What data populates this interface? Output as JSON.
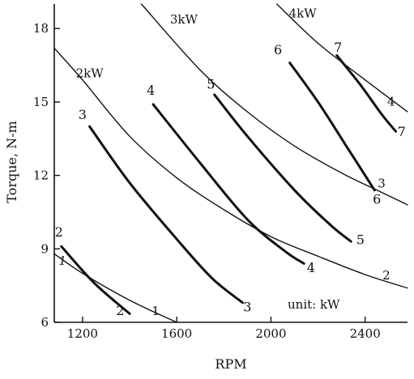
{
  "chart_data": {
    "type": "line",
    "xlabel": "RPM",
    "ylabel": "Torque, N-m",
    "xlim": [
      1080,
      2580
    ],
    "ylim": [
      6,
      19
    ],
    "xticks": [
      1200,
      1600,
      2000,
      2400
    ],
    "yticks": [
      6,
      9,
      12,
      15,
      18
    ],
    "annotation": "unit: kW",
    "series": [
      {
        "name": "2",
        "end_label": "2",
        "points": [
          [
            1110,
            9.1
          ],
          [
            1250,
            7.6
          ],
          [
            1400,
            6.35
          ]
        ],
        "label_positions": [
          [
            1100,
            9.5
          ],
          [
            1360,
            6.3
          ]
        ]
      },
      {
        "name": "3",
        "end_label": "3",
        "points": [
          [
            1230,
            14.0
          ],
          [
            1400,
            11.7
          ],
          [
            1600,
            9.4
          ],
          [
            1750,
            7.8
          ],
          [
            1880,
            6.8
          ]
        ],
        "label_positions": [
          [
            1200,
            14.3
          ],
          [
            1900,
            6.45
          ]
        ]
      },
      {
        "name": "4",
        "end_label": "4",
        "points": [
          [
            1500,
            14.9
          ],
          [
            1700,
            12.5
          ],
          [
            1900,
            10.2
          ],
          [
            2060,
            8.9
          ],
          [
            2140,
            8.4
          ]
        ],
        "label_positions": [
          [
            1490,
            15.3
          ],
          [
            2170,
            8.05
          ]
        ]
      },
      {
        "name": "5",
        "end_label": "5",
        "points": [
          [
            1760,
            15.3
          ],
          [
            1900,
            13.6
          ],
          [
            2100,
            11.4
          ],
          [
            2250,
            10.0
          ],
          [
            2340,
            9.3
          ]
        ],
        "label_positions": [
          [
            1745,
            15.55
          ],
          [
            2380,
            9.2
          ]
        ]
      },
      {
        "name": "6",
        "end_label": "6",
        "points": [
          [
            2080,
            16.6
          ],
          [
            2200,
            15.0
          ],
          [
            2320,
            13.2
          ],
          [
            2440,
            11.4
          ]
        ],
        "label_positions": [
          [
            2030,
            16.95
          ],
          [
            2450,
            10.85
          ]
        ]
      },
      {
        "name": "7",
        "end_label": "7",
        "points": [
          [
            2280,
            16.9
          ],
          [
            2380,
            15.7
          ],
          [
            2470,
            14.5
          ],
          [
            2530,
            13.8
          ]
        ],
        "label_positions": [
          [
            2285,
            17.05
          ],
          [
            2555,
            13.6
          ]
        ]
      }
    ],
    "constant_power_curves": [
      {
        "power_kw": "1",
        "labels": [
          "1",
          "1"
        ],
        "points": [
          [
            1080,
            8.8
          ],
          [
            1200,
            8.0
          ],
          [
            1400,
            6.9
          ],
          [
            1600,
            6.0
          ]
        ],
        "label_positions": [
          [
            1115,
            8.35
          ],
          [
            1510,
            6.3
          ]
        ]
      },
      {
        "name": "2kW",
        "power_kw": "2",
        "labels": [
          "2kW",
          "2"
        ],
        "points": [
          [
            1080,
            17.2
          ],
          [
            1200,
            15.9
          ],
          [
            1400,
            13.6
          ],
          [
            1600,
            11.9
          ],
          [
            1800,
            10.6
          ],
          [
            2000,
            9.5
          ],
          [
            2200,
            8.7
          ],
          [
            2400,
            7.95
          ],
          [
            2580,
            7.4
          ]
        ],
        "label_positions": [
          [
            1230,
            16.0
          ],
          [
            2490,
            7.75
          ]
        ]
      },
      {
        "name": "3kW",
        "power_kw": "3",
        "labels": [
          "3kW",
          "3"
        ],
        "points": [
          [
            1450,
            19.0
          ],
          [
            1700,
            16.3
          ],
          [
            1900,
            14.6
          ],
          [
            2100,
            13.2
          ],
          [
            2300,
            12.1
          ],
          [
            2450,
            11.4
          ],
          [
            2580,
            10.8
          ]
        ],
        "label_positions": [
          [
            1630,
            18.2
          ],
          [
            2470,
            11.5
          ]
        ]
      },
      {
        "name": "4kW",
        "power_kw": "4",
        "labels": [
          "4kW",
          "4"
        ],
        "points": [
          [
            2025,
            19.0
          ],
          [
            2200,
            17.4
          ],
          [
            2400,
            15.9
          ],
          [
            2580,
            14.6
          ]
        ],
        "label_positions": [
          [
            2135,
            18.45
          ],
          [
            2510,
            14.85
          ]
        ]
      }
    ]
  }
}
